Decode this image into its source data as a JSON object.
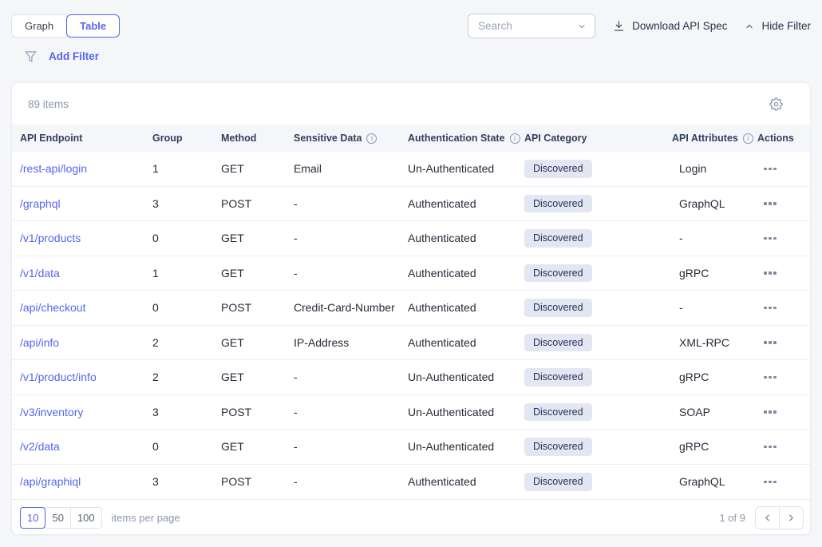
{
  "view_toggle": {
    "options": [
      "Graph",
      "Table"
    ],
    "selected": "Table"
  },
  "toolbar": {
    "search_placeholder": "Search",
    "download_label": "Download API Spec",
    "hide_filter_label": "Hide Filter"
  },
  "filter_bar": {
    "add_filter_label": "Add Filter"
  },
  "table": {
    "items_count": "89 items",
    "columns": [
      {
        "label": "API Endpoint",
        "info": false
      },
      {
        "label": "Group",
        "info": false
      },
      {
        "label": "Method",
        "info": false
      },
      {
        "label": "Sensitive Data",
        "info": true
      },
      {
        "label": "Authentication State",
        "info": true
      },
      {
        "label": "API Category",
        "info": false
      },
      {
        "label": "API Attributes",
        "info": true
      },
      {
        "label": "Actions",
        "info": false
      }
    ],
    "rows": [
      {
        "endpoint": "/rest-api/login",
        "group": "1",
        "method": "GET",
        "sensitive_data": "Email",
        "auth_state": "Un-Authenticated",
        "category": "Discovered",
        "attributes": "Login"
      },
      {
        "endpoint": "/graphql",
        "group": "3",
        "method": "POST",
        "sensitive_data": "-",
        "auth_state": "Authenticated",
        "category": "Discovered",
        "attributes": "GraphQL"
      },
      {
        "endpoint": "/v1/products",
        "group": "0",
        "method": "GET",
        "sensitive_data": "-",
        "auth_state": "Authenticated",
        "category": "Discovered",
        "attributes": "-"
      },
      {
        "endpoint": "/v1/data",
        "group": "1",
        "method": "GET",
        "sensitive_data": "-",
        "auth_state": "Authenticated",
        "category": "Discovered",
        "attributes": "gRPC"
      },
      {
        "endpoint": "/api/checkout",
        "group": "0",
        "method": "POST",
        "sensitive_data": "Credit-Card-Number",
        "auth_state": "Authenticated",
        "category": "Discovered",
        "attributes": "-"
      },
      {
        "endpoint": "/api/info",
        "group": "2",
        "method": "GET",
        "sensitive_data": "IP-Address",
        "auth_state": "Authenticated",
        "category": "Discovered",
        "attributes": "XML-RPC"
      },
      {
        "endpoint": "/v1/product/info",
        "group": "2",
        "method": "GET",
        "sensitive_data": "-",
        "auth_state": "Un-Authenticated",
        "category": "Discovered",
        "attributes": "gRPC"
      },
      {
        "endpoint": "/v3/inventory",
        "group": "3",
        "method": "POST",
        "sensitive_data": "-",
        "auth_state": "Un-Authenticated",
        "category": "Discovered",
        "attributes": "SOAP"
      },
      {
        "endpoint": "/v2/data",
        "group": "0",
        "method": "GET",
        "sensitive_data": "-",
        "auth_state": "Un-Authenticated",
        "category": "Discovered",
        "attributes": "gRPC"
      },
      {
        "endpoint": "/api/graphiql",
        "group": "3",
        "method": "POST",
        "sensitive_data": "-",
        "auth_state": "Authenticated",
        "category": "Discovered",
        "attributes": "GraphQL"
      }
    ]
  },
  "pagination": {
    "page_sizes": [
      "10",
      "50",
      "100"
    ],
    "selected_page_size": "10",
    "items_per_page_label": "items per page",
    "page_status": "1 of 9"
  },
  "colors": {
    "accent": "#5466ef",
    "link": "#5466ef",
    "badge_bg": "#e3e7f1",
    "badge_text": "#272f58"
  }
}
